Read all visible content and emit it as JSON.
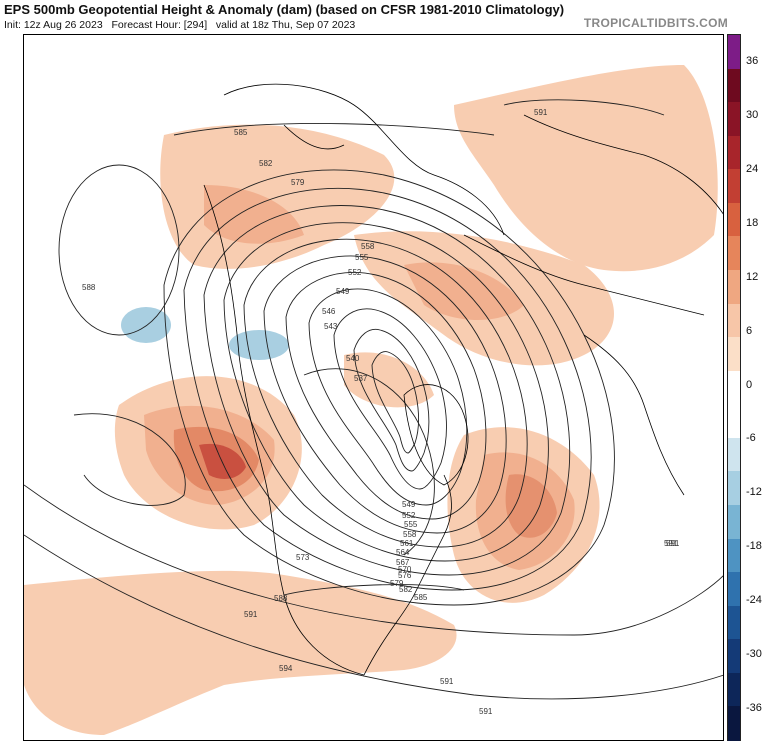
{
  "header": {
    "title": "EPS 500mb Geopotential Height & Anomaly (dam) (based on CFSR 1981-2010 Climatology)",
    "init": "Init: 12z Aug 26 2023",
    "forecast_hour": "Forecast Hour: [294]",
    "valid": "valid at 18z Thu, Sep 07 2023",
    "brand": "TROPICALTIDBITS.COM"
  },
  "colorbar": {
    "ticks": [
      "36",
      "30",
      "24",
      "18",
      "12",
      "6",
      "0",
      "-6",
      "-12",
      "-18",
      "-24",
      "-30",
      "-36"
    ],
    "colors": [
      "#7d1c87",
      "#6e0a1f",
      "#8a1426",
      "#a8252b",
      "#c23f33",
      "#d8613f",
      "#e6855b",
      "#efa781",
      "#f7c6a8",
      "#fbdfc8",
      "#ffffff",
      "#ffffff",
      "#cfe4ee",
      "#a7cfe2",
      "#79b4d3",
      "#4e93c2",
      "#2f72ae",
      "#1d5493",
      "#143a77",
      "#0d2659",
      "#0a173f"
    ]
  },
  "contour_labels": [
    "585",
    "582",
    "579",
    "591",
    "558",
    "555",
    "552",
    "549",
    "546",
    "543",
    "540",
    "537",
    "588",
    "591",
    "573",
    "576",
    "579",
    "582",
    "585",
    "588",
    "549",
    "552",
    "555",
    "558",
    "561",
    "564",
    "567",
    "570",
    "591",
    "594",
    "591",
    "591",
    "591"
  ]
}
